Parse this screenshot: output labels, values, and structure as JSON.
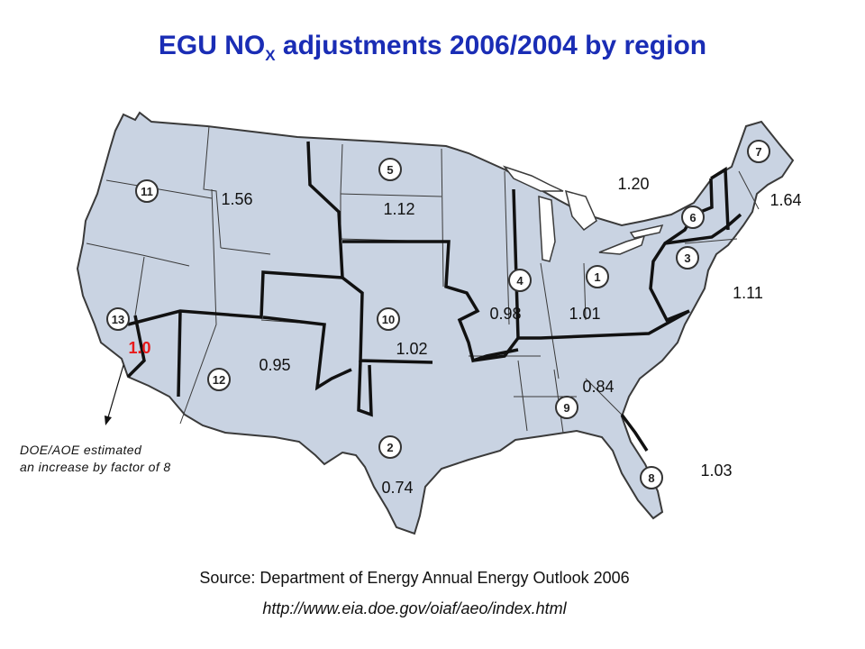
{
  "title": {
    "main": "EGU NO",
    "subscript": "X",
    "rest": " adjustments 2006/2004 by region"
  },
  "region_numbers": [
    "1",
    "2",
    "3",
    "4",
    "5",
    "6",
    "7",
    "8",
    "9",
    "10",
    "11",
    "12",
    "13"
  ],
  "values": {
    "r11_northwest": "1.56",
    "r5_north_central": "1.12",
    "r13_california": "1.0",
    "r12_southwest": "0.95",
    "r10_central": "1.02",
    "r2_texas": "0.74",
    "r4_midwest": "0.98",
    "r1_ohio_valley": "1.01",
    "r9_southeast": "0.84",
    "r8_florida": "1.03",
    "r3_mid_atlantic": "1.11",
    "r6_new_york": "1.20",
    "r7_new_england": "1.64"
  },
  "annotation": {
    "line1": "DOE/AOE estimated",
    "line2": "an increase by factor of 8"
  },
  "source": "Source: Department of Energy Annual Energy Outlook 2006",
  "url": "http://www.eia.doe.gov/oiaf/aeo/index.html",
  "colors": {
    "title": "#1a2db5",
    "map_fill": "#c9d3e2",
    "highlight_value": "#e8191a"
  }
}
